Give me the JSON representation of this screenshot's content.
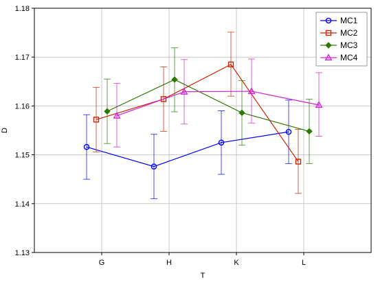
{
  "chart_data": {
    "type": "line",
    "xlabel": "T",
    "ylabel": "D",
    "categories": [
      "G",
      "H",
      "K",
      "L"
    ],
    "ylim": [
      1.13,
      1.18
    ],
    "yticks": [
      "1.13",
      "1.14",
      "1.15",
      "1.16",
      "1.17",
      "1.18"
    ],
    "grid": true,
    "legend_position": "top-right",
    "error_bars": true,
    "series": [
      {
        "name": "MC1",
        "color": "#0000ff",
        "marker": "circle",
        "values": [
          1.1516,
          1.1476,
          1.1525,
          1.1547
        ],
        "lower": [
          1.145,
          1.141,
          1.146,
          1.1482
        ],
        "upper": [
          1.1582,
          1.1542,
          1.159,
          1.1612
        ]
      },
      {
        "name": "MC2",
        "color": "#cc2200",
        "marker": "square",
        "values": [
          1.1572,
          1.1614,
          1.1685,
          1.1486
        ],
        "lower": [
          1.1506,
          1.1548,
          1.162,
          1.1421
        ],
        "upper": [
          1.1638,
          1.168,
          1.1751,
          1.1552
        ]
      },
      {
        "name": "MC3",
        "color": "#2a7a00",
        "marker": "diamond",
        "values": [
          1.1589,
          1.1654,
          1.1586,
          1.1548
        ],
        "lower": [
          1.1523,
          1.1588,
          1.152,
          1.1482
        ],
        "upper": [
          1.1655,
          1.1719,
          1.1652,
          1.1614
        ]
      },
      {
        "name": "MC4",
        "color": "#d024d0",
        "marker": "triangle",
        "values": [
          1.158,
          1.1629,
          1.163,
          1.1602
        ],
        "lower": [
          1.1516,
          1.1563,
          1.1565,
          1.1538
        ],
        "upper": [
          1.1646,
          1.1695,
          1.1696,
          1.1668
        ]
      }
    ]
  }
}
